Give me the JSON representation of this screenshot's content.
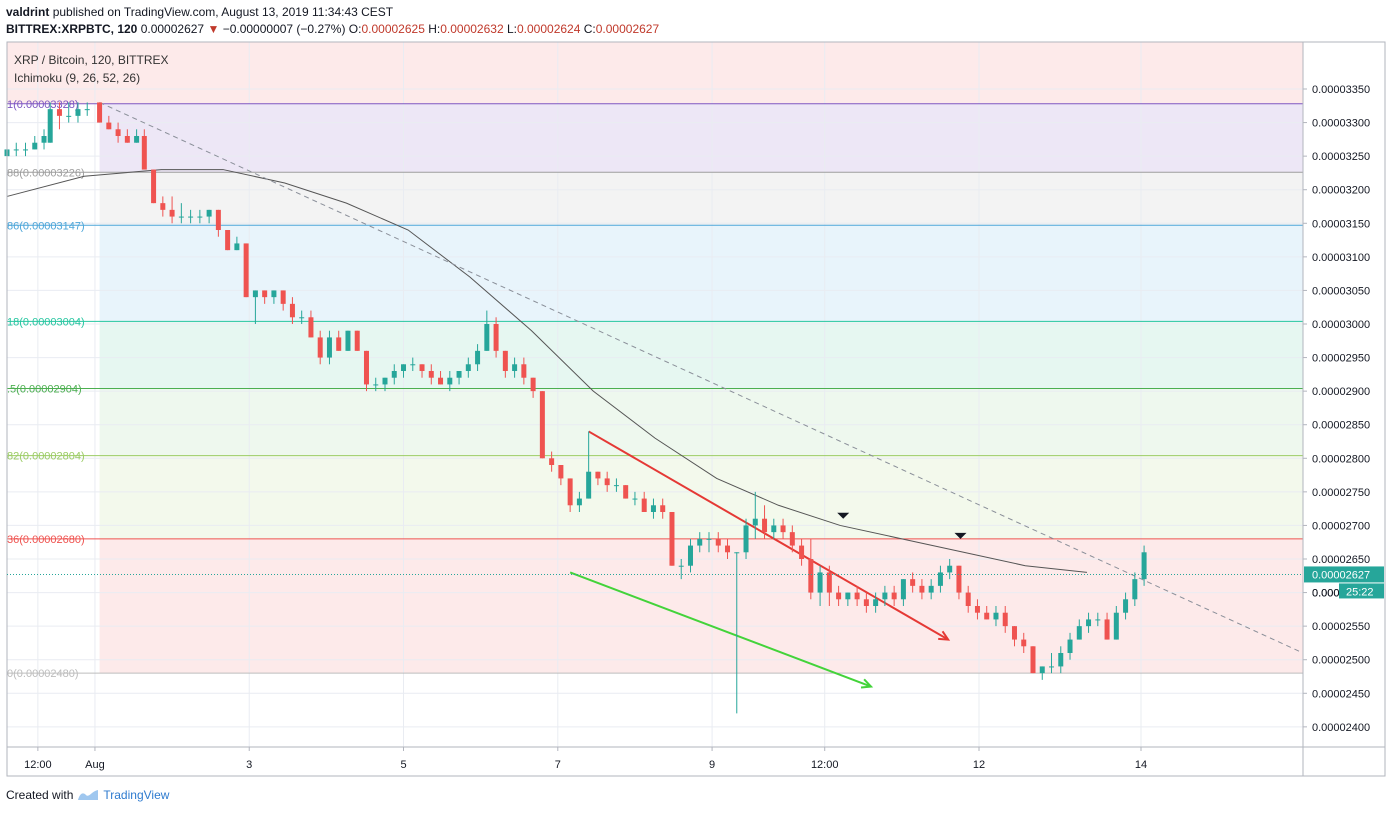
{
  "header": {
    "author": "valdrint",
    "published": "published on TradingView.com, August 13, 2019 11:34:43 CEST",
    "symbol": "BITTREX:XRPBTC, 120",
    "last": "0.00002627",
    "change_arrow": "▼",
    "change": "−0.00000007 (−0.27%)",
    "o_label": "O:",
    "o": "0.00002625",
    "h_label": "H:",
    "h": "0.00002632",
    "l_label": "L:",
    "l": "0.00002624",
    "c_label": "C:",
    "c": "0.00002627"
  },
  "footer": {
    "created_with": "Created with",
    "brand": "TradingView"
  },
  "colors": {
    "up": "#26a69a",
    "down": "#ef5350",
    "ichimoku": "#555555",
    "red_line": "#e53935",
    "green_line": "#43d33a"
  },
  "chart_data": {
    "type": "candlestick",
    "title": "XRP / Bitcoin, 120, BITTREX",
    "indicator": "Ichimoku (9, 26, 52, 26)",
    "ylim": [
      2.37e-05,
      3.42e-05
    ],
    "y_ticks": [
      "0.00003350",
      "0.00003300",
      "0.00003250",
      "0.00003200",
      "0.00003150",
      "0.00003100",
      "0.00003050",
      "0.00003000",
      "0.00002950",
      "0.00002900",
      "0.00002850",
      "0.00002800",
      "0.00002750",
      "0.00002700",
      "0.00002650",
      "0.00002600",
      "0.00002550",
      "0.00002500",
      "0.00002450",
      "0.00002400"
    ],
    "x_ticks": [
      {
        "label": "12:00",
        "t": 0.2
      },
      {
        "label": "Aug",
        "t": 0.57
      },
      {
        "label": "3",
        "t": 1.57
      },
      {
        "label": "5",
        "t": 2.57
      },
      {
        "label": "7",
        "t": 3.57
      },
      {
        "label": "9",
        "t": 4.57
      },
      {
        "label": "12:00",
        "t": 5.3
      },
      {
        "label": "12",
        "t": 6.3
      },
      {
        "label": "14",
        "t": 7.35
      }
    ],
    "x_range": [
      0,
      8.4
    ],
    "current_price_label": "0.00002627",
    "countdown_label": "25:22",
    "partial_tick_label": "0.000",
    "fib_levels": [
      {
        "label": "1(0.00003328)",
        "value": 3.328e-05,
        "color": "#7e57c2",
        "fill": "#ede7f6"
      },
      {
        "label": "88(0.00003226)",
        "value": 3.226e-05,
        "color": "#9e9e9e",
        "fill": "#f3f3f3"
      },
      {
        "label": "86(0.00003147)",
        "value": 3.147e-05,
        "color": "#4da6d9",
        "fill": "#e8f4fb"
      },
      {
        "label": "18(0.00003004)",
        "value": 3.004e-05,
        "color": "#26c6a0",
        "fill": "#e6f7f1"
      },
      {
        "label": ".5(0.00002904)",
        "value": 2.904e-05,
        "color": "#4caf50",
        "fill": "#eef8ee"
      },
      {
        "label": "82(0.00002804)",
        "value": 2.804e-05,
        "color": "#9ccc65",
        "fill": "#f3f9ec"
      },
      {
        "label": "36(0.00002680)",
        "value": 2.68e-05,
        "color": "#ef5350",
        "fill": "#fdeaea"
      },
      {
        "label": "0(0.00002480)",
        "value": 2.48e-05,
        "color": "#bdbdbd",
        "fill": "#fdeaea"
      }
    ],
    "candles": [
      [
        0.0,
        3.25e-05,
        3.26e-05,
        3.25e-05,
        3.26e-05
      ],
      [
        0.06,
        3.26e-05,
        3.27e-05,
        3.25e-05,
        3.26e-05
      ],
      [
        0.12,
        3.26e-05,
        3.27e-05,
        3.25e-05,
        3.26e-05
      ],
      [
        0.18,
        3.26e-05,
        3.28e-05,
        3.26e-05,
        3.27e-05
      ],
      [
        0.24,
        3.27e-05,
        3.29e-05,
        3.26e-05,
        3.28e-05
      ],
      [
        0.28,
        3.27e-05,
        3.33e-05,
        3.27e-05,
        3.32e-05
      ],
      [
        0.34,
        3.32e-05,
        3.33e-05,
        3.29e-05,
        3.31e-05
      ],
      [
        0.4,
        3.31e-05,
        3.33e-05,
        3.3e-05,
        3.31e-05
      ],
      [
        0.46,
        3.31e-05,
        3.33e-05,
        3.3e-05,
        3.32e-05
      ],
      [
        0.52,
        3.32e-05,
        3.33e-05,
        3.31e-05,
        3.32e-05
      ],
      [
        0.6,
        3.33e-05,
        3.33e-05,
        3.3e-05,
        3.3e-05
      ],
      [
        0.66,
        3.3e-05,
        3.31e-05,
        3.29e-05,
        3.29e-05
      ],
      [
        0.72,
        3.29e-05,
        3.3e-05,
        3.27e-05,
        3.28e-05
      ],
      [
        0.78,
        3.28e-05,
        3.29e-05,
        3.27e-05,
        3.27e-05
      ],
      [
        0.84,
        3.27e-05,
        3.29e-05,
        3.27e-05,
        3.28e-05
      ],
      [
        0.89,
        3.28e-05,
        3.29e-05,
        3.24e-05,
        3.23e-05
      ],
      [
        0.95,
        3.23e-05,
        3.23e-05,
        3.18e-05,
        3.18e-05
      ],
      [
        1.01,
        3.18e-05,
        3.19e-05,
        3.16e-05,
        3.17e-05
      ],
      [
        1.07,
        3.17e-05,
        3.19e-05,
        3.15e-05,
        3.16e-05
      ],
      [
        1.13,
        3.16e-05,
        3.18e-05,
        3.15e-05,
        3.16e-05
      ],
      [
        1.19,
        3.16e-05,
        3.17e-05,
        3.15e-05,
        3.16e-05
      ],
      [
        1.25,
        3.16e-05,
        3.17e-05,
        3.15e-05,
        3.16e-05
      ],
      [
        1.31,
        3.16e-05,
        3.17e-05,
        3.15e-05,
        3.17e-05
      ],
      [
        1.37,
        3.17e-05,
        3.17e-05,
        3.13e-05,
        3.14e-05
      ],
      [
        1.43,
        3.14e-05,
        3.14e-05,
        3.11e-05,
        3.11e-05
      ],
      [
        1.49,
        3.11e-05,
        3.13e-05,
        3.11e-05,
        3.12e-05
      ],
      [
        1.55,
        3.12e-05,
        3.12e-05,
        3.04e-05,
        3.04e-05
      ],
      [
        1.61,
        3.04e-05,
        3.05e-05,
        3e-05,
        3.05e-05
      ],
      [
        1.67,
        3.05e-05,
        3.05e-05,
        3.03e-05,
        3.04e-05
      ],
      [
        1.73,
        3.04e-05,
        3.05e-05,
        3.03e-05,
        3.05e-05
      ],
      [
        1.79,
        3.05e-05,
        3.05e-05,
        3.02e-05,
        3.03e-05
      ],
      [
        1.85,
        3.03e-05,
        3.04e-05,
        3e-05,
        3.01e-05
      ],
      [
        1.91,
        3.01e-05,
        3.02e-05,
        3e-05,
        3.01e-05
      ],
      [
        1.97,
        3.01e-05,
        3.02e-05,
        2.98e-05,
        2.98e-05
      ],
      [
        2.03,
        2.98e-05,
        2.99e-05,
        2.94e-05,
        2.95e-05
      ],
      [
        2.09,
        2.95e-05,
        2.99e-05,
        2.94e-05,
        2.98e-05
      ],
      [
        2.15,
        2.98e-05,
        2.99e-05,
        2.96e-05,
        2.96e-05
      ],
      [
        2.21,
        2.96e-05,
        2.99e-05,
        2.96e-05,
        2.99e-05
      ],
      [
        2.27,
        2.99e-05,
        2.99e-05,
        2.96e-05,
        2.96e-05
      ],
      [
        2.33,
        2.96e-05,
        2.96e-05,
        2.9e-05,
        2.91e-05
      ],
      [
        2.39,
        2.91e-05,
        2.92e-05,
        2.9e-05,
        2.91e-05
      ],
      [
        2.45,
        2.91e-05,
        2.92e-05,
        2.9e-05,
        2.92e-05
      ],
      [
        2.51,
        2.92e-05,
        2.94e-05,
        2.91e-05,
        2.93e-05
      ],
      [
        2.57,
        2.93e-05,
        2.94e-05,
        2.92e-05,
        2.94e-05
      ],
      [
        2.63,
        2.94e-05,
        2.95e-05,
        2.93e-05,
        2.94e-05
      ],
      [
        2.69,
        2.94e-05,
        2.94e-05,
        2.92e-05,
        2.93e-05
      ],
      [
        2.75,
        2.93e-05,
        2.94e-05,
        2.91e-05,
        2.92e-05
      ],
      [
        2.81,
        2.92e-05,
        2.93e-05,
        2.91e-05,
        2.91e-05
      ],
      [
        2.87,
        2.91e-05,
        2.93e-05,
        2.9e-05,
        2.92e-05
      ],
      [
        2.93,
        2.92e-05,
        2.93e-05,
        2.91e-05,
        2.93e-05
      ],
      [
        2.99,
        2.93e-05,
        2.95e-05,
        2.92e-05,
        2.94e-05
      ],
      [
        3.05,
        2.94e-05,
        2.97e-05,
        2.93e-05,
        2.96e-05
      ],
      [
        3.11,
        2.96e-05,
        3.02e-05,
        2.96e-05,
        3e-05
      ],
      [
        3.17,
        3e-05,
        3.01e-05,
        2.95e-05,
        2.96e-05
      ],
      [
        3.23,
        2.96e-05,
        2.96e-05,
        2.92e-05,
        2.93e-05
      ],
      [
        3.29,
        2.93e-05,
        2.95e-05,
        2.92e-05,
        2.94e-05
      ],
      [
        3.35,
        2.94e-05,
        2.95e-05,
        2.91e-05,
        2.92e-05
      ],
      [
        3.41,
        2.92e-05,
        2.92e-05,
        2.89e-05,
        2.9e-05
      ],
      [
        3.47,
        2.9e-05,
        2.9e-05,
        2.8e-05,
        2.8e-05
      ],
      [
        3.53,
        2.8e-05,
        2.81e-05,
        2.78e-05,
        2.79e-05
      ],
      [
        3.59,
        2.79e-05,
        2.79e-05,
        2.76e-05,
        2.77e-05
      ],
      [
        3.65,
        2.77e-05,
        2.77e-05,
        2.72e-05,
        2.73e-05
      ],
      [
        3.71,
        2.73e-05,
        2.75e-05,
        2.72e-05,
        2.74e-05
      ],
      [
        3.77,
        2.74e-05,
        2.84e-05,
        2.74e-05,
        2.78e-05
      ],
      [
        3.83,
        2.78e-05,
        2.78e-05,
        2.76e-05,
        2.77e-05
      ],
      [
        3.89,
        2.77e-05,
        2.78e-05,
        2.75e-05,
        2.76e-05
      ],
      [
        3.95,
        2.76e-05,
        2.77e-05,
        2.75e-05,
        2.76e-05
      ],
      [
        4.01,
        2.76e-05,
        2.76e-05,
        2.74e-05,
        2.74e-05
      ],
      [
        4.07,
        2.74e-05,
        2.75e-05,
        2.73e-05,
        2.74e-05
      ],
      [
        4.13,
        2.74e-05,
        2.75e-05,
        2.72e-05,
        2.72e-05
      ],
      [
        4.19,
        2.72e-05,
        2.74e-05,
        2.71e-05,
        2.73e-05
      ],
      [
        4.25,
        2.73e-05,
        2.74e-05,
        2.71e-05,
        2.72e-05
      ],
      [
        4.31,
        2.72e-05,
        2.72e-05,
        2.64e-05,
        2.64e-05
      ],
      [
        4.37,
        2.64e-05,
        2.65e-05,
        2.62e-05,
        2.64e-05
      ],
      [
        4.43,
        2.64e-05,
        2.68e-05,
        2.63e-05,
        2.67e-05
      ],
      [
        4.49,
        2.67e-05,
        2.69e-05,
        2.66e-05,
        2.68e-05
      ],
      [
        4.55,
        2.68e-05,
        2.69e-05,
        2.66e-05,
        2.68e-05
      ],
      [
        4.61,
        2.68e-05,
        2.69e-05,
        2.66e-05,
        2.67e-05
      ],
      [
        4.67,
        2.67e-05,
        2.68e-05,
        2.65e-05,
        2.66e-05
      ],
      [
        4.73,
        2.66e-05,
        2.66e-05,
        2.42e-05,
        2.66e-05
      ],
      [
        4.79,
        2.66e-05,
        2.71e-05,
        2.65e-05,
        2.7e-05
      ],
      [
        4.85,
        2.7e-05,
        2.75e-05,
        2.68e-05,
        2.71e-05
      ],
      [
        4.91,
        2.71e-05,
        2.73e-05,
        2.68e-05,
        2.69e-05
      ],
      [
        4.97,
        2.69e-05,
        2.71e-05,
        2.68e-05,
        2.7e-05
      ],
      [
        5.03,
        2.7e-05,
        2.71e-05,
        2.68e-05,
        2.69e-05
      ],
      [
        5.09,
        2.69e-05,
        2.7e-05,
        2.66e-05,
        2.67e-05
      ],
      [
        5.15,
        2.67e-05,
        2.68e-05,
        2.64e-05,
        2.65e-05
      ],
      [
        5.21,
        2.65e-05,
        2.68e-05,
        2.59e-05,
        2.6e-05
      ],
      [
        5.27,
        2.6e-05,
        2.64e-05,
        2.58e-05,
        2.63e-05
      ],
      [
        5.33,
        2.63e-05,
        2.64e-05,
        2.58e-05,
        2.6e-05
      ],
      [
        5.39,
        2.6e-05,
        2.61e-05,
        2.58e-05,
        2.59e-05
      ],
      [
        5.45,
        2.59e-05,
        2.6e-05,
        2.58e-05,
        2.6e-05
      ],
      [
        5.51,
        2.6e-05,
        2.61e-05,
        2.58e-05,
        2.59e-05
      ],
      [
        5.57,
        2.59e-05,
        2.6e-05,
        2.57e-05,
        2.58e-05
      ],
      [
        5.63,
        2.58e-05,
        2.6e-05,
        2.57e-05,
        2.59e-05
      ],
      [
        5.69,
        2.59e-05,
        2.61e-05,
        2.58e-05,
        2.6e-05
      ],
      [
        5.75,
        2.6e-05,
        2.61e-05,
        2.58e-05,
        2.59e-05
      ],
      [
        5.81,
        2.59e-05,
        2.62e-05,
        2.58e-05,
        2.62e-05
      ],
      [
        5.87,
        2.62e-05,
        2.63e-05,
        2.6e-05,
        2.61e-05
      ],
      [
        5.93,
        2.61e-05,
        2.62e-05,
        2.59e-05,
        2.6e-05
      ],
      [
        5.99,
        2.6e-05,
        2.62e-05,
        2.59e-05,
        2.61e-05
      ],
      [
        6.05,
        2.61e-05,
        2.64e-05,
        2.6e-05,
        2.63e-05
      ],
      [
        6.11,
        2.63e-05,
        2.65e-05,
        2.62e-05,
        2.64e-05
      ],
      [
        6.17,
        2.64e-05,
        2.64e-05,
        2.59e-05,
        2.6e-05
      ],
      [
        6.23,
        2.6e-05,
        2.61e-05,
        2.57e-05,
        2.58e-05
      ],
      [
        6.29,
        2.58e-05,
        2.59e-05,
        2.56e-05,
        2.57e-05
      ],
      [
        6.35,
        2.57e-05,
        2.58e-05,
        2.56e-05,
        2.56e-05
      ],
      [
        6.41,
        2.56e-05,
        2.58e-05,
        2.55e-05,
        2.57e-05
      ],
      [
        6.47,
        2.57e-05,
        2.58e-05,
        2.54e-05,
        2.55e-05
      ],
      [
        6.53,
        2.55e-05,
        2.55e-05,
        2.52e-05,
        2.53e-05
      ],
      [
        6.59,
        2.53e-05,
        2.54e-05,
        2.51e-05,
        2.52e-05
      ],
      [
        6.65,
        2.52e-05,
        2.52e-05,
        2.48e-05,
        2.48e-05
      ],
      [
        6.71,
        2.48e-05,
        2.49e-05,
        2.47e-05,
        2.49e-05
      ],
      [
        6.77,
        2.49e-05,
        2.51e-05,
        2.48e-05,
        2.49e-05
      ],
      [
        6.83,
        2.49e-05,
        2.52e-05,
        2.48e-05,
        2.51e-05
      ],
      [
        6.89,
        2.51e-05,
        2.54e-05,
        2.5e-05,
        2.53e-05
      ],
      [
        6.95,
        2.53e-05,
        2.56e-05,
        2.53e-05,
        2.55e-05
      ],
      [
        7.01,
        2.55e-05,
        2.57e-05,
        2.54e-05,
        2.56e-05
      ],
      [
        7.07,
        2.56e-05,
        2.57e-05,
        2.55e-05,
        2.56e-05
      ],
      [
        7.13,
        2.56e-05,
        2.57e-05,
        2.53e-05,
        2.53e-05
      ],
      [
        7.19,
        2.53e-05,
        2.58e-05,
        2.53e-05,
        2.57e-05
      ],
      [
        7.25,
        2.57e-05,
        2.6e-05,
        2.56e-05,
        2.59e-05
      ],
      [
        7.31,
        2.59e-05,
        2.63e-05,
        2.58e-05,
        2.62e-05
      ],
      [
        7.37,
        2.62e-05,
        2.67e-05,
        2.61e-05,
        2.66e-05
      ]
    ],
    "downtrend_dashed": {
      "t0": 0.6,
      "v0": 3.33e-05,
      "t1": 8.4,
      "v1": 2.51e-05
    },
    "red_arrow": {
      "t0": 3.77,
      "v0": 2.84e-05,
      "t1": 6.1,
      "v1": 2.53e-05
    },
    "green_arrow": {
      "t0": 3.65,
      "v0": 2.63e-05,
      "t1": 5.6,
      "v1": 2.46e-05
    },
    "ichimoku_line": [
      [
        0,
        3.19e-05
      ],
      [
        0.5,
        3.22e-05
      ],
      [
        1.0,
        3.23e-05
      ],
      [
        1.4,
        3.23e-05
      ],
      [
        1.8,
        3.21e-05
      ],
      [
        2.2,
        3.18e-05
      ],
      [
        2.6,
        3.14e-05
      ],
      [
        3.0,
        3.07e-05
      ],
      [
        3.4,
        2.99e-05
      ],
      [
        3.8,
        2.9e-05
      ],
      [
        4.2,
        2.83e-05
      ],
      [
        4.6,
        2.77e-05
      ],
      [
        5.0,
        2.73e-05
      ],
      [
        5.4,
        2.7e-05
      ],
      [
        5.8,
        2.68e-05
      ],
      [
        6.2,
        2.66e-05
      ],
      [
        6.6,
        2.64e-05
      ],
      [
        7.0,
        2.63e-05
      ]
    ],
    "markers": [
      {
        "t": 5.42,
        "v": 2.71e-05
      },
      {
        "t": 6.18,
        "v": 2.68e-05
      }
    ]
  }
}
